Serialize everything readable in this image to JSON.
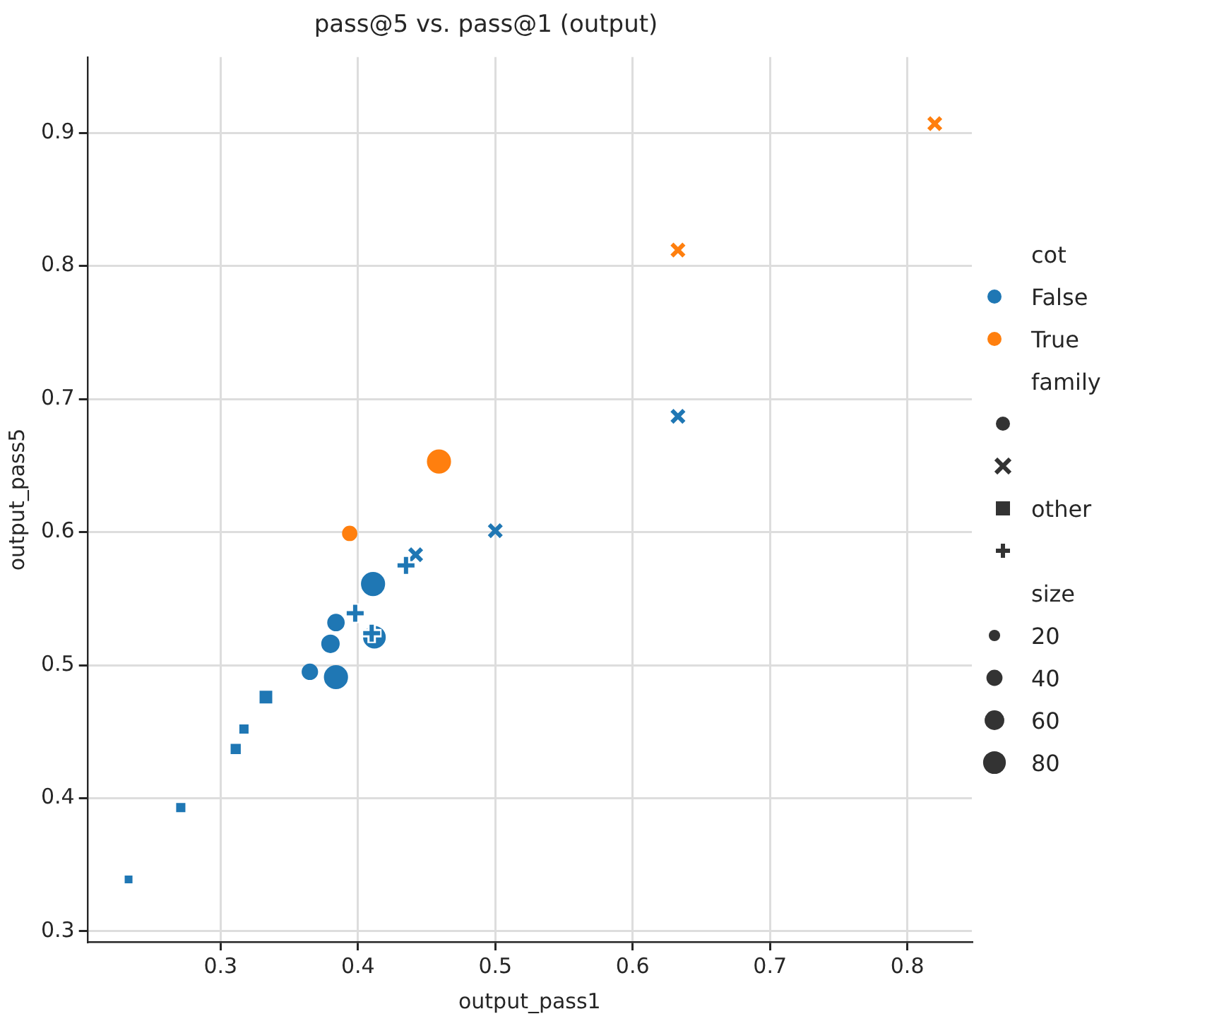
{
  "chart_data": {
    "type": "bubble",
    "title": "pass@5 vs. pass@1 (output)",
    "xlabel": "output_pass1",
    "ylabel": "output_pass5",
    "xlim": [
      0.203,
      0.847
    ],
    "ylim": [
      0.292,
      0.957
    ],
    "xticks": [
      0.3,
      0.4,
      0.5,
      0.6,
      0.7,
      0.8
    ],
    "yticks": [
      0.3,
      0.4,
      0.5,
      0.6,
      0.7,
      0.8,
      0.9
    ],
    "grid": true,
    "legend": "right",
    "legend_title": "cot",
    "annotations": [
      "family",
      "other",
      "size"
    ],
    "size_legend": [
      20,
      40,
      60,
      80
    ],
    "series": [
      {
        "name": "False",
        "color": "#1f77b4",
        "marker": "circle",
        "x": [
          0.411,
          0.384,
          0.412,
          0.38,
          0.365,
          0.384
        ],
        "values": [
          0.561,
          0.532,
          0.521,
          0.516,
          0.495,
          0.491
        ],
        "sizes": [
          80,
          40,
          70,
          45,
          35,
          80
        ]
      },
      {
        "type": "scatter",
        "color": "#1f77b4",
        "marker": "x",
        "x": [
          0.633,
          0.5,
          0.442
        ],
        "values": [
          0.687,
          0.601,
          0.583
        ]
      },
      {
        "color": "#1f77b4",
        "marker": "square",
        "x": [
          0.333,
          0.317,
          0.311,
          0.271,
          0.233
        ],
        "values": [
          0.476,
          0.452,
          0.437,
          0.393,
          0.339
        ],
        "sizes": [
          25,
          12,
          15,
          12,
          8
        ]
      },
      {
        "type": "scatter",
        "color": "#1f77b4",
        "marker": "cross",
        "x": [
          0.435,
          0.398,
          0.41
        ],
        "values": [
          0.575,
          0.539,
          0.524
        ]
      },
      {
        "name": "True",
        "color": "#ff7f0e",
        "marker": "circle",
        "x": [
          0.459,
          0.394
        ],
        "values": [
          0.653,
          0.599
        ],
        "sizes": [
          80,
          30
        ]
      },
      {
        "type": "scatter",
        "color": "#ff7f0e",
        "marker": "x",
        "x": [
          0.82,
          0.633
        ],
        "values": [
          0.907,
          0.812
        ]
      }
    ]
  }
}
